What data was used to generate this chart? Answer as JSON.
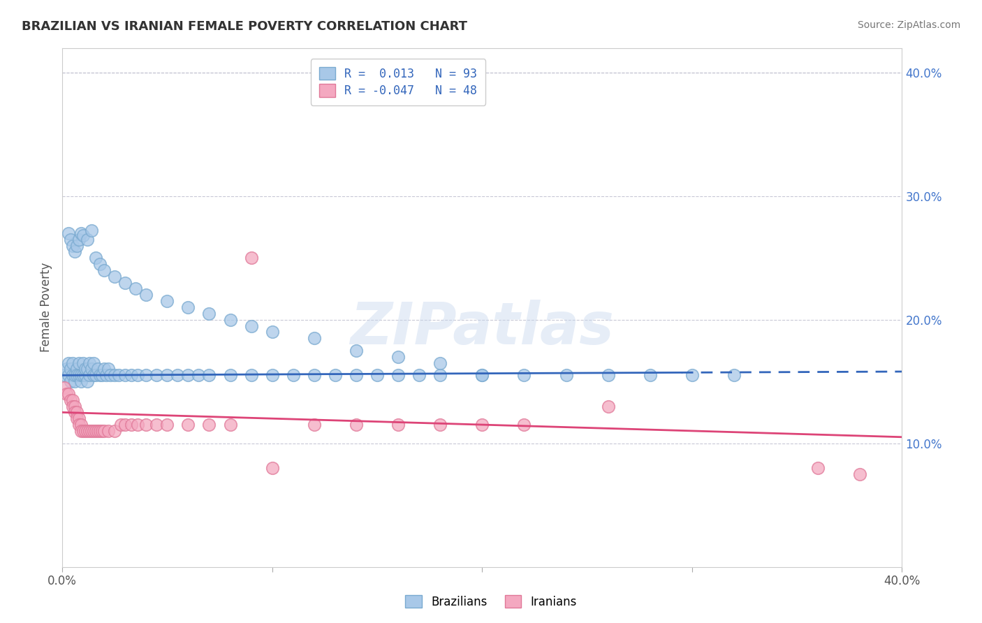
{
  "title": "BRAZILIAN VS IRANIAN FEMALE POVERTY CORRELATION CHART",
  "source": "Source: ZipAtlas.com",
  "ylabel": "Female Poverty",
  "right_yticks": [
    "40.0%",
    "30.0%",
    "20.0%",
    "10.0%"
  ],
  "right_ytick_vals": [
    0.4,
    0.3,
    0.2,
    0.1
  ],
  "xlim": [
    0.0,
    0.4
  ],
  "ylim": [
    0.0,
    0.42
  ],
  "brazil_R": 0.013,
  "brazil_N": 93,
  "iran_R": -0.047,
  "iran_N": 48,
  "brazil_color": "#A8C8E8",
  "brazil_edge_color": "#7AAAD0",
  "iran_color": "#F4A8C0",
  "iran_edge_color": "#E07898",
  "brazil_line_color": "#3366BB",
  "iran_line_color": "#DD4477",
  "watermark": "ZIPatlas",
  "brazil_scatter_x": [
    0.001,
    0.002,
    0.003,
    0.003,
    0.004,
    0.004,
    0.005,
    0.005,
    0.006,
    0.006,
    0.007,
    0.007,
    0.008,
    0.008,
    0.009,
    0.009,
    0.01,
    0.01,
    0.011,
    0.011,
    0.012,
    0.012,
    0.013,
    0.013,
    0.014,
    0.015,
    0.015,
    0.016,
    0.017,
    0.018,
    0.019,
    0.02,
    0.021,
    0.022,
    0.023,
    0.025,
    0.027,
    0.03,
    0.033,
    0.036,
    0.04,
    0.045,
    0.05,
    0.055,
    0.06,
    0.065,
    0.07,
    0.08,
    0.09,
    0.1,
    0.11,
    0.12,
    0.13,
    0.14,
    0.15,
    0.16,
    0.17,
    0.18,
    0.2,
    0.22,
    0.24,
    0.26,
    0.28,
    0.3,
    0.32,
    0.003,
    0.004,
    0.005,
    0.006,
    0.007,
    0.008,
    0.009,
    0.01,
    0.012,
    0.014,
    0.016,
    0.018,
    0.02,
    0.025,
    0.03,
    0.035,
    0.04,
    0.05,
    0.06,
    0.07,
    0.08,
    0.09,
    0.1,
    0.12,
    0.14,
    0.16,
    0.18,
    0.2
  ],
  "brazil_scatter_y": [
    0.155,
    0.16,
    0.155,
    0.165,
    0.15,
    0.16,
    0.155,
    0.165,
    0.15,
    0.155,
    0.16,
    0.155,
    0.155,
    0.165,
    0.15,
    0.155,
    0.155,
    0.165,
    0.155,
    0.16,
    0.15,
    0.16,
    0.155,
    0.165,
    0.16,
    0.155,
    0.165,
    0.155,
    0.16,
    0.155,
    0.155,
    0.16,
    0.155,
    0.16,
    0.155,
    0.155,
    0.155,
    0.155,
    0.155,
    0.155,
    0.155,
    0.155,
    0.155,
    0.155,
    0.155,
    0.155,
    0.155,
    0.155,
    0.155,
    0.155,
    0.155,
    0.155,
    0.155,
    0.155,
    0.155,
    0.155,
    0.155,
    0.155,
    0.155,
    0.155,
    0.155,
    0.155,
    0.155,
    0.155,
    0.155,
    0.27,
    0.265,
    0.26,
    0.255,
    0.26,
    0.265,
    0.27,
    0.268,
    0.265,
    0.272,
    0.25,
    0.245,
    0.24,
    0.235,
    0.23,
    0.225,
    0.22,
    0.215,
    0.21,
    0.205,
    0.2,
    0.195,
    0.19,
    0.185,
    0.175,
    0.17,
    0.165,
    0.155
  ],
  "iran_scatter_x": [
    0.001,
    0.002,
    0.003,
    0.004,
    0.005,
    0.005,
    0.006,
    0.006,
    0.007,
    0.007,
    0.008,
    0.008,
    0.009,
    0.009,
    0.01,
    0.011,
    0.012,
    0.013,
    0.014,
    0.015,
    0.016,
    0.017,
    0.018,
    0.019,
    0.02,
    0.022,
    0.025,
    0.028,
    0.03,
    0.033,
    0.036,
    0.04,
    0.045,
    0.05,
    0.06,
    0.07,
    0.08,
    0.09,
    0.1,
    0.12,
    0.14,
    0.16,
    0.18,
    0.2,
    0.22,
    0.26,
    0.36,
    0.38
  ],
  "iran_scatter_y": [
    0.145,
    0.14,
    0.14,
    0.135,
    0.135,
    0.13,
    0.13,
    0.125,
    0.125,
    0.12,
    0.12,
    0.115,
    0.115,
    0.11,
    0.11,
    0.11,
    0.11,
    0.11,
    0.11,
    0.11,
    0.11,
    0.11,
    0.11,
    0.11,
    0.11,
    0.11,
    0.11,
    0.115,
    0.115,
    0.115,
    0.115,
    0.115,
    0.115,
    0.115,
    0.115,
    0.115,
    0.115,
    0.25,
    0.08,
    0.115,
    0.115,
    0.115,
    0.115,
    0.115,
    0.115,
    0.13,
    0.08,
    0.075
  ],
  "brazil_line_x": [
    0.0,
    0.295,
    0.295,
    0.4
  ],
  "brazil_line_style": [
    "solid",
    "dashed"
  ],
  "brazil_line_y_start": 0.155,
  "brazil_line_y_end": 0.158,
  "iran_line_y_start": 0.125,
  "iran_line_y_end": 0.105
}
